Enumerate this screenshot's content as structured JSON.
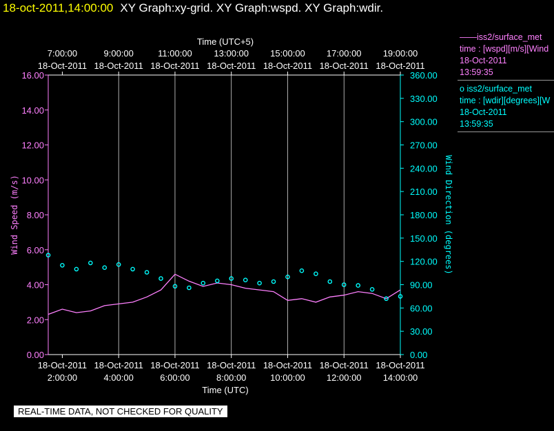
{
  "header": {
    "timestamp": "18-oct-2011,14:00:00",
    "graphs": "XY Graph:xy-grid.  XY Graph:wspd.  XY Graph:wdir."
  },
  "colors": {
    "wspd": "#ff80ff",
    "wdir": "#00ffff",
    "axis": "#ffffff",
    "grid": "#ffffff",
    "background": "#000000"
  },
  "legend": [
    {
      "marker": "——",
      "name": "iss2/surface_met",
      "var": "time : [wspd][m/s][Wind",
      "date": "18-Oct-2011",
      "time": "13:59:35"
    },
    {
      "marker": "o",
      "name": "iss2/surface_met",
      "var": "time : [wdir][degrees][W",
      "date": "18-Oct-2011",
      "time": "13:59:35"
    }
  ],
  "warning": "REAL-TIME DATA, NOT CHECKED FOR QUALITY",
  "chart_data": {
    "type": "line",
    "xlabel_bottom": "Time (UTC)",
    "xlabel_top": "Time (UTC+5)",
    "ylabel_left": "Wind Speed (m/s)",
    "ylabel_right": "Wind Direction (degrees)",
    "x_range_utc_hours": [
      1.5,
      14.0
    ],
    "bottom_ticks": [
      {
        "date": "18-Oct-2011",
        "time": "2:00:00",
        "hour": 2
      },
      {
        "date": "18-Oct-2011",
        "time": "4:00:00",
        "hour": 4
      },
      {
        "date": "18-Oct-2011",
        "time": "6:00:00",
        "hour": 6
      },
      {
        "date": "18-Oct-2011",
        "time": "8:00:00",
        "hour": 8
      },
      {
        "date": "18-Oct-2011",
        "time": "10:00:00",
        "hour": 10
      },
      {
        "date": "18-Oct-2011",
        "time": "12:00:00",
        "hour": 12
      },
      {
        "date": "18-Oct-2011",
        "time": "14:00:00",
        "hour": 14
      }
    ],
    "top_ticks": [
      {
        "time": "7:00:00",
        "date": "18-Oct-2011",
        "hour": 2
      },
      {
        "time": "9:00:00",
        "date": "18-Oct-2011",
        "hour": 4
      },
      {
        "time": "11:00:00",
        "date": "18-Oct-2011",
        "hour": 6
      },
      {
        "time": "13:00:00",
        "date": "18-Oct-2011",
        "hour": 8
      },
      {
        "time": "15:00:00",
        "date": "18-Oct-2011",
        "hour": 10
      },
      {
        "time": "17:00:00",
        "date": "18-Oct-2011",
        "hour": 12
      },
      {
        "time": "19:00:00",
        "date": "18-Oct-2011",
        "hour": 14
      }
    ],
    "ylim_left": [
      0,
      16
    ],
    "yticks_left": [
      "0.00",
      "2.00",
      "4.00",
      "6.00",
      "8.00",
      "10.00",
      "12.00",
      "14.00",
      "16.00"
    ],
    "ylim_right": [
      0,
      360
    ],
    "yticks_right": [
      "0.00",
      "30.00",
      "60.00",
      "90.00",
      "120.00",
      "150.00",
      "180.00",
      "210.00",
      "240.00",
      "270.00",
      "300.00",
      "330.00",
      "360.00"
    ],
    "grid": "vertical",
    "series": [
      {
        "name": "iss2/surface_met wspd",
        "axis": "left",
        "style": "line",
        "x": [
          1.5,
          2.0,
          2.5,
          3.0,
          3.5,
          4.0,
          4.5,
          5.0,
          5.5,
          6.0,
          6.5,
          7.0,
          7.5,
          8.0,
          8.5,
          9.0,
          9.5,
          10.0,
          10.5,
          11.0,
          11.5,
          12.0,
          12.5,
          13.0,
          13.5,
          14.0
        ],
        "y": [
          2.3,
          2.6,
          2.4,
          2.5,
          2.8,
          2.9,
          3.0,
          3.3,
          3.7,
          4.6,
          4.2,
          3.9,
          4.1,
          4.0,
          3.8,
          3.7,
          3.6,
          3.1,
          3.2,
          3.0,
          3.3,
          3.4,
          3.6,
          3.5,
          3.2,
          3.7
        ]
      },
      {
        "name": "iss2/surface_met wdir",
        "axis": "right",
        "style": "markers",
        "x": [
          1.5,
          2.0,
          2.5,
          3.0,
          3.5,
          4.0,
          4.5,
          5.0,
          5.5,
          6.0,
          6.5,
          7.0,
          7.5,
          8.0,
          8.5,
          9.0,
          9.5,
          10.0,
          10.5,
          11.0,
          11.5,
          12.0,
          12.5,
          13.0,
          13.5,
          14.0
        ],
        "y": [
          128,
          115,
          110,
          118,
          112,
          116,
          110,
          106,
          98,
          88,
          86,
          92,
          95,
          98,
          96,
          92,
          94,
          100,
          108,
          104,
          94,
          90,
          89,
          84,
          72,
          75
        ]
      }
    ]
  }
}
